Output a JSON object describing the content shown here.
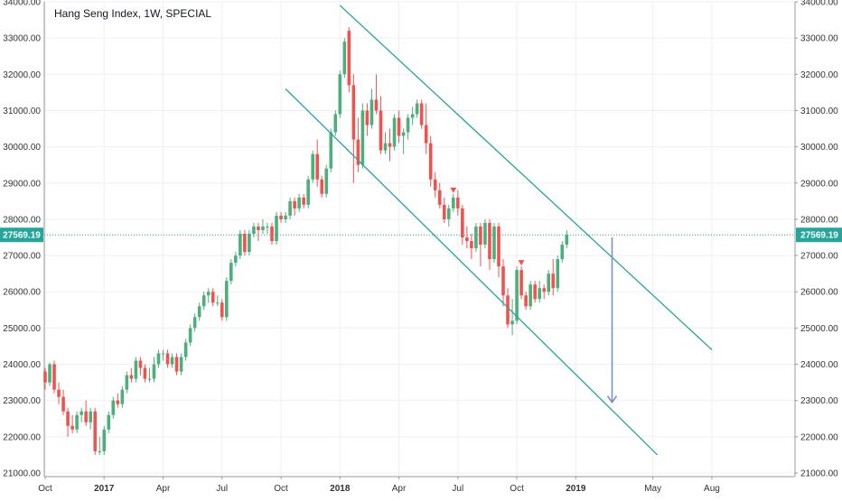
{
  "chart_title": "Hang Seng Index, 1W, SPECIAL",
  "colors": {
    "up": "#26a69a",
    "up_body": "#4caf7d",
    "down": "#ef5350",
    "channel": "#26a69a",
    "arrow": "#7b8fc9",
    "grid": "#eef0f3",
    "axis_text": "#333333",
    "price_line": "#26a69a",
    "price_label_bg": "#26a69a"
  },
  "chart_data": {
    "type": "candlestick",
    "title": "Hang Seng Index, 1W, SPECIAL",
    "ylim": [
      20900,
      34000
    ],
    "y_ticks": [
      21000,
      22000,
      23000,
      24000,
      25000,
      26000,
      27000,
      28000,
      29000,
      30000,
      31000,
      32000,
      33000,
      34000
    ],
    "y_tick_labels": [
      "21000.00",
      "22000.00",
      "23000.00",
      "24000.00",
      "25000.00",
      "26000.00",
      "27000.00",
      "28000.00",
      "29000.00",
      "30000.00",
      "31000.00",
      "32000.00",
      "33000.00",
      "34000.00"
    ],
    "x_ticks": [
      {
        "label": "Oct",
        "week": 0,
        "bold": false
      },
      {
        "label": "2017",
        "week": 13,
        "bold": true
      },
      {
        "label": "Apr",
        "week": 26,
        "bold": false
      },
      {
        "label": "Jul",
        "week": 39,
        "bold": false
      },
      {
        "label": "Oct",
        "week": 52,
        "bold": false
      },
      {
        "label": "2018",
        "week": 65,
        "bold": true
      },
      {
        "label": "Apr",
        "week": 78,
        "bold": false
      },
      {
        "label": "Jul",
        "week": 91,
        "bold": false
      },
      {
        "label": "Oct",
        "week": 104,
        "bold": false
      },
      {
        "label": "2019",
        "week": 117,
        "bold": true
      },
      {
        "label": "May",
        "week": 134,
        "bold": false
      },
      {
        "label": "Aug",
        "week": 147,
        "bold": false
      }
    ],
    "last_price": 27569.19,
    "last_price_label": "27569.19",
    "candles": [
      [
        23800,
        23500,
        23900,
        23300
      ],
      [
        23500,
        24000,
        24050,
        23400
      ],
      [
        24000,
        23300,
        24100,
        23200
      ],
      [
        23300,
        23100,
        23500,
        22900
      ],
      [
        23100,
        22700,
        23300,
        22600
      ],
      [
        22700,
        22300,
        22800,
        22000
      ],
      [
        22300,
        22200,
        22600,
        22100
      ],
      [
        22200,
        22600,
        22700,
        22100
      ],
      [
        22600,
        22700,
        22800,
        22400
      ],
      [
        22700,
        22400,
        23000,
        22300
      ],
      [
        22400,
        22700,
        22800,
        22200
      ],
      [
        22700,
        21600,
        22800,
        21500
      ],
      [
        21600,
        21600,
        22000,
        21500
      ],
      [
        21600,
        22200,
        22300,
        21500
      ],
      [
        22200,
        22600,
        22700,
        22100
      ],
      [
        22600,
        23000,
        23100,
        22500
      ],
      [
        23000,
        22900,
        23200,
        22800
      ],
      [
        22900,
        23300,
        23400,
        22800
      ],
      [
        23300,
        23700,
        23800,
        23200
      ],
      [
        23700,
        23600,
        23900,
        23500
      ],
      [
        23600,
        24100,
        24200,
        23500
      ],
      [
        24100,
        23900,
        24200,
        23700
      ],
      [
        23900,
        23600,
        24000,
        23500
      ],
      [
        23600,
        23600,
        23900,
        23500
      ],
      [
        23600,
        24000,
        24200,
        23500
      ],
      [
        24000,
        24300,
        24400,
        23900
      ],
      [
        24300,
        24300,
        24400,
        24100
      ],
      [
        24300,
        24000,
        24400,
        23900
      ],
      [
        24000,
        24200,
        24300,
        23900
      ],
      [
        24200,
        23800,
        24300,
        23700
      ],
      [
        23800,
        24200,
        24300,
        23700
      ],
      [
        24200,
        24600,
        24700,
        24100
      ],
      [
        24600,
        25000,
        25100,
        24500
      ],
      [
        25000,
        25300,
        25400,
        24900
      ],
      [
        25300,
        25600,
        25700,
        25200
      ],
      [
        25600,
        25900,
        26000,
        25500
      ],
      [
        25900,
        26000,
        26100,
        25700
      ],
      [
        26000,
        25700,
        26100,
        25600
      ],
      [
        25700,
        25700,
        25900,
        25600
      ],
      [
        25700,
        25300,
        25800,
        25200
      ],
      [
        25300,
        26300,
        26400,
        25200
      ],
      [
        26300,
        26800,
        26900,
        26200
      ],
      [
        26800,
        27000,
        27100,
        26700
      ],
      [
        27000,
        27600,
        27700,
        26900
      ],
      [
        27600,
        27100,
        27700,
        27000
      ],
      [
        27100,
        27600,
        27700,
        27000
      ],
      [
        27600,
        27800,
        27900,
        27500
      ],
      [
        27800,
        27700,
        27900,
        27400
      ],
      [
        27700,
        27800,
        28000,
        27600
      ],
      [
        27800,
        27800,
        27900,
        27600
      ],
      [
        27800,
        27400,
        27900,
        27300
      ],
      [
        27400,
        28100,
        28200,
        27300
      ],
      [
        28100,
        28000,
        28200,
        27900
      ],
      [
        28000,
        28100,
        28200,
        27900
      ],
      [
        28100,
        28500,
        28600,
        28000
      ],
      [
        28500,
        28300,
        28600,
        28100
      ],
      [
        28300,
        28600,
        28700,
        28200
      ],
      [
        28600,
        28400,
        28700,
        28300
      ],
      [
        28400,
        29100,
        29200,
        28300
      ],
      [
        29100,
        29800,
        29900,
        29000
      ],
      [
        29800,
        29100,
        30200,
        28900
      ],
      [
        29100,
        28700,
        29200,
        28600
      ],
      [
        28700,
        29400,
        29500,
        28600
      ],
      [
        29400,
        30400,
        30500,
        29300
      ],
      [
        30400,
        30900,
        31000,
        30300
      ],
      [
        30900,
        32000,
        32100,
        30800
      ],
      [
        32000,
        32900,
        33000,
        31900
      ],
      [
        33200,
        31700,
        33300,
        31500
      ],
      [
        31700,
        30200,
        32000,
        29000
      ],
      [
        30200,
        29500,
        30800,
        29300
      ],
      [
        29500,
        31000,
        31200,
        29400
      ],
      [
        31000,
        30600,
        31200,
        30300
      ],
      [
        30600,
        31300,
        31600,
        30500
      ],
      [
        31300,
        31000,
        32000,
        30900
      ],
      [
        31000,
        29900,
        31400,
        29800
      ],
      [
        29900,
        30100,
        30400,
        29800
      ],
      [
        30100,
        30000,
        30500,
        29600
      ],
      [
        30000,
        30800,
        30900,
        29900
      ],
      [
        30800,
        30300,
        31000,
        30100
      ],
      [
        30300,
        30400,
        30500,
        29800
      ],
      [
        30400,
        30800,
        30900,
        30200
      ],
      [
        30800,
        30900,
        31100,
        30600
      ],
      [
        30900,
        31200,
        31300,
        30800
      ],
      [
        31200,
        30600,
        31300,
        30500
      ],
      [
        30600,
        30100,
        31200,
        29800
      ],
      [
        30100,
        29100,
        30300,
        28900
      ],
      [
        29100,
        28800,
        29300,
        28600
      ],
      [
        28800,
        28400,
        29000,
        28300
      ],
      [
        28400,
        28000,
        28600,
        27900
      ],
      [
        28000,
        28300,
        28400,
        27800
      ],
      [
        28300,
        28600,
        28700,
        28200
      ],
      [
        28600,
        28300,
        28800,
        28100
      ],
      [
        28300,
        27500,
        28400,
        27300
      ],
      [
        27500,
        27400,
        27800,
        27200
      ],
      [
        27400,
        27200,
        27600,
        26900
      ],
      [
        27200,
        27800,
        27900,
        27100
      ],
      [
        27800,
        27300,
        27900,
        26700
      ],
      [
        27300,
        27900,
        28000,
        27200
      ],
      [
        27900,
        26900,
        28000,
        26600
      ],
      [
        26900,
        27800,
        27900,
        26800
      ],
      [
        27800,
        26700,
        27900,
        26400
      ],
      [
        26700,
        25900,
        26900,
        25600
      ],
      [
        25900,
        25100,
        26100,
        25000
      ],
      [
        25100,
        25200,
        25800,
        24800
      ],
      [
        25200,
        26600,
        26700,
        25100
      ],
      [
        26600,
        25900,
        26700,
        25800
      ],
      [
        25900,
        25600,
        26000,
        25500
      ],
      [
        25600,
        26200,
        26300,
        25500
      ],
      [
        26200,
        25800,
        26300,
        25700
      ],
      [
        25800,
        26100,
        26300,
        25700
      ],
      [
        26100,
        26000,
        26200,
        25800
      ],
      [
        26000,
        26500,
        26600,
        25900
      ],
      [
        26500,
        26100,
        26900,
        25900
      ],
      [
        26100,
        26900,
        27000,
        26000
      ],
      [
        26900,
        27300,
        27400,
        26800
      ],
      [
        27300,
        27569,
        27700,
        27200
      ]
    ],
    "marker_weeks": [
      90,
      105
    ],
    "channel_upper": {
      "from": {
        "week": 65,
        "price": 33900
      },
      "to": {
        "week": 147,
        "price": 24400
      }
    },
    "channel_lower": {
      "from": {
        "week": 53,
        "price": 31600
      },
      "to": {
        "week": 135,
        "price": 21500
      }
    },
    "arrow": {
      "week": 125,
      "from_price": 27500,
      "to_price": 22950
    }
  }
}
